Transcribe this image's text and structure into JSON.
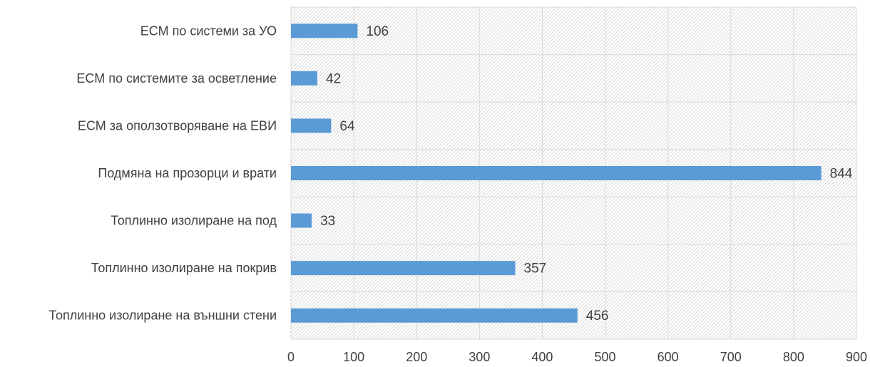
{
  "chart_data": {
    "type": "bar",
    "orientation": "horizontal",
    "categories": [
      "ЕСМ по системи за УО",
      "ЕСМ по системите за осветление",
      "ЕСМ за оползотворяване на ЕВИ",
      "Подмяна на прозорци и врати",
      "Топлинно изолиране на под",
      "Топлинно изолиране на покрив",
      "Топлинно изолиране на външни стени"
    ],
    "values": [
      106,
      42,
      64,
      844,
      33,
      357,
      456
    ],
    "data_labels": [
      "106",
      "42",
      "64",
      "844",
      "33",
      "357",
      "456"
    ],
    "x_ticks": [
      "0",
      "100",
      "200",
      "300",
      "400",
      "500",
      "600",
      "700",
      "800",
      "900"
    ],
    "xlim": [
      0,
      900
    ],
    "grid": true,
    "plot_area_fill": "diagonal-hatch",
    "legend": "none",
    "colors": {
      "bar": "#5b9bd5",
      "grid": "#d9d9d9",
      "hatch": "#d0d0d0",
      "text": "#404040"
    }
  }
}
